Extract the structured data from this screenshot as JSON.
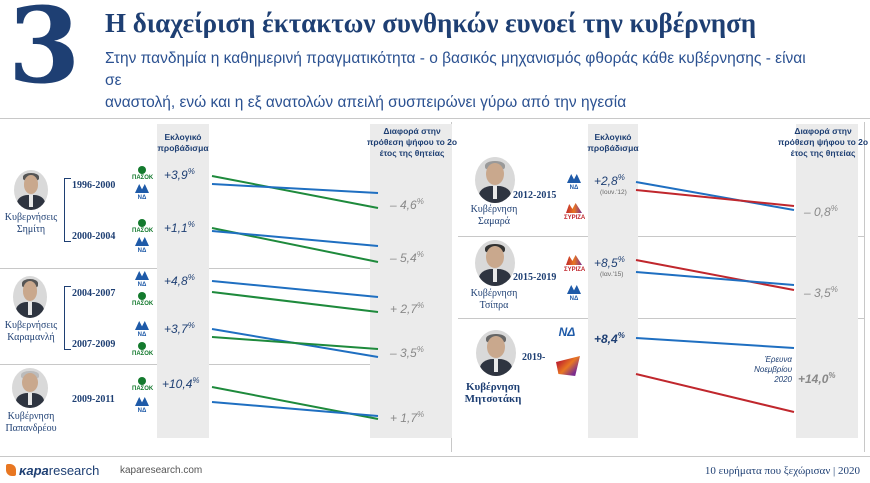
{
  "header": {
    "number": "3",
    "title": "Η διαχείριση έκτακτων συνθηκών ευνοεί την κυβέρνηση",
    "subtitle_line1": "Στην πανδημία η καθημερινή πραγματικότητα - ο βασικός μηχανισμός φθοράς κάθε κυβέρνησης - είναι σε",
    "subtitle_line2": "αναστολή, ενώ και η εξ ανατολών απειλή συσπειρώνει γύρω από την ηγεσία"
  },
  "columns": {
    "left_election": "Εκλογικό προβάδισμα",
    "left_diff": "Διαφορά στην πρόθεση ψήφου το 2ο έτος της θητείας",
    "right_election": "Εκλογικό προβάδισμα",
    "right_diff": "Διαφορά στην πρόθεση ψήφου το 2ο έτος της θητείας"
  },
  "governments": {
    "simitis": "Κυβερνήσεις Σημίτη",
    "karamanlis": "Κυβερνήσεις Καραμανλή",
    "papandreou": "Κυβέρνηση Παπανδρέου",
    "samaras": "Κυβέρνηση Σαμαρά",
    "tsipras": "Κυβέρνηση Τσίπρα",
    "mitsotakis": "Κυβέρνηση Μητσοτάκη"
  },
  "logos": {
    "pasok": "ΠΑΣΟΚ",
    "nd": "ΝΔ",
    "syriza": "ΣΥΡΙΖΑ"
  },
  "colors": {
    "nd": "#1f6fc1",
    "pasok": "#1e8a3c",
    "syriza": "#c0272d",
    "band": "#ebebeb",
    "navy": "#1e3f73"
  },
  "chart_data": {
    "type": "slope",
    "title": "Η διαχείριση έκτακτων συνθηκών ευνοεί την κυβέρνηση",
    "x_labels": [
      "Εκλογικό προβάδισμα",
      "Διαφορά στην πρόθεση ψήφου το 2ο έτος της θητείας"
    ],
    "unit": "%",
    "series": [
      {
        "period": "1996-2000",
        "government": "Κυβερνήσεις Σημίτη",
        "winner": "ΠΑΣΟΚ",
        "election_text": "+3,9",
        "diff_text": "– 4,6",
        "election": 3.9,
        "diff": -4.6
      },
      {
        "period": "2000-2004",
        "government": "Κυβερνήσεις Σημίτη",
        "winner": "ΠΑΣΟΚ",
        "election_text": "+1,1",
        "diff_text": "– 5,4",
        "election": 1.1,
        "diff": -5.4
      },
      {
        "period": "2004-2007",
        "government": "Κυβερνήσεις Καραμανλή",
        "winner": "ΝΔ",
        "election_text": "+4,8",
        "diff_text": "+ 2,7",
        "election": 4.8,
        "diff": 2.7
      },
      {
        "period": "2007-2009",
        "government": "Κυβερνήσεις Καραμανλή",
        "winner": "ΝΔ",
        "election_text": "+3,7",
        "diff_text": "– 3,5",
        "election": 3.7,
        "diff": -3.5
      },
      {
        "period": "2009-2011",
        "government": "Κυβέρνηση Παπανδρέου",
        "winner": "ΠΑΣΟΚ",
        "election_text": "+10,4",
        "diff_text": "+ 1,7",
        "election": 10.4,
        "diff": 1.7
      },
      {
        "period": "2012-2015",
        "government": "Κυβέρνηση Σαμαρά",
        "winner": "ΝΔ",
        "election_text": "+2,8",
        "diff_text": "– 0,8",
        "election": 2.8,
        "diff": -0.8,
        "note": "(Ιουν.'12)"
      },
      {
        "period": "2015-2019",
        "government": "Κυβέρνηση Τσίπρα",
        "winner": "ΣΥΡΙΖΑ",
        "election_text": "+8,5",
        "diff_text": "– 3,5",
        "election": 8.5,
        "diff": -3.5,
        "note": "(Ιαν.'15)"
      },
      {
        "period": "2019-",
        "government": "Κυβέρνηση Μητσοτάκη",
        "winner": "ΝΔ",
        "election_text": "+8,4",
        "diff_text": "+14,0",
        "election": 8.4,
        "diff": 14.0,
        "survey_note": "Έρευνα Νοεμβρίου 2020"
      }
    ],
    "pct_symbol": "%"
  },
  "footer": {
    "brand_a": "κapa",
    "brand_b": "research",
    "url": "kaparesearch.com",
    "right": "10 ευρήματα που ξεχώρισαν | 2020"
  }
}
